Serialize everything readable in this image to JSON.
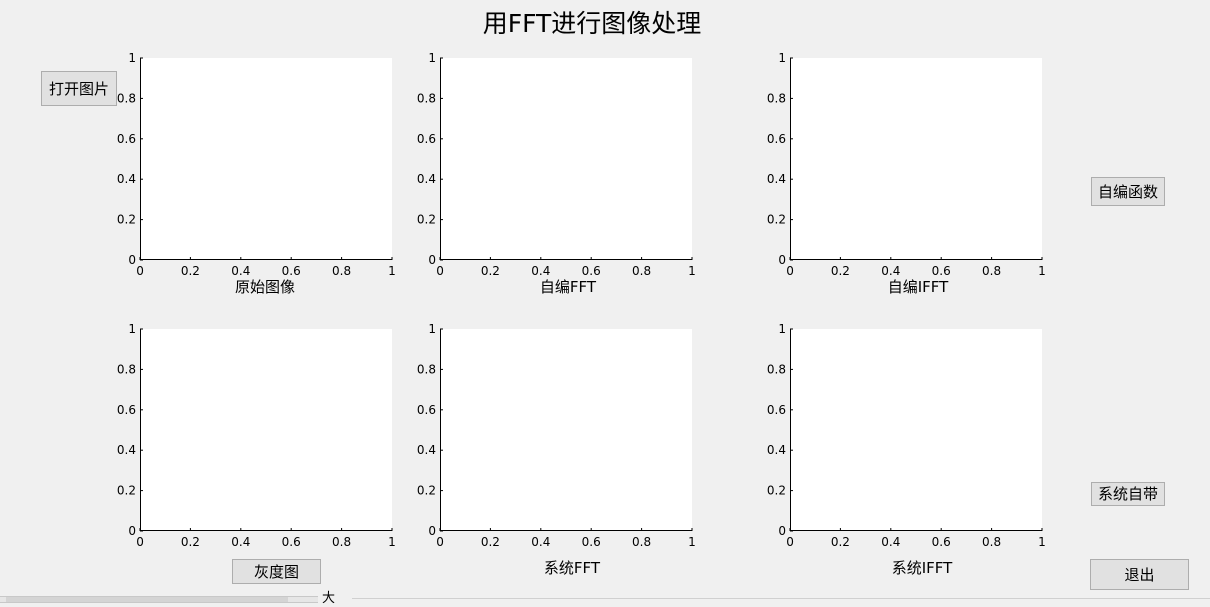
{
  "window": {
    "title": "用FFT进行图像处理"
  },
  "buttons": {
    "open_image": "打开图片",
    "custom_function": "自编函数",
    "builtin": "系统自带",
    "grayscale": "灰度图",
    "exit": "退出"
  },
  "axes_ticks": {
    "x": [
      "0",
      "0.2",
      "0.4",
      "0.6",
      "0.8",
      "1"
    ],
    "y": [
      "0",
      "0.2",
      "0.4",
      "0.6",
      "0.8",
      "1"
    ],
    "xlim": [
      0,
      1
    ],
    "ylim": [
      0,
      1
    ]
  },
  "plots": [
    {
      "label": "原始图像"
    },
    {
      "label": "自编FFT"
    },
    {
      "label": "自编IFFT"
    },
    {
      "label": ""
    },
    {
      "label": "系统FFT"
    },
    {
      "label": "系统IFFT"
    }
  ],
  "bottom": {
    "tab_text": "大"
  }
}
